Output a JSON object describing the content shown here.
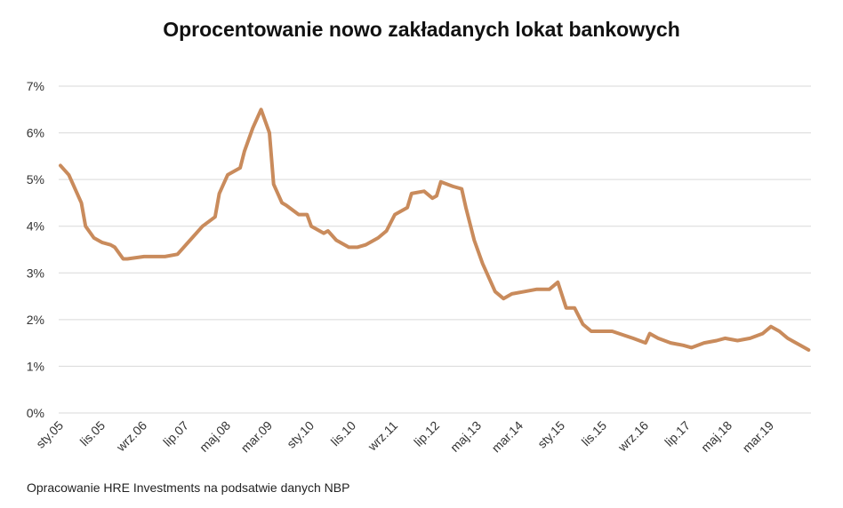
{
  "chart_data": {
    "type": "line",
    "title": "Oprocentowanie nowo zakładanych lokat bankowych",
    "source": "Opracowanie HRE Investments na podsatwie danych NBP",
    "xlabel": "",
    "ylabel": "",
    "ylim": [
      0,
      7
    ],
    "yticks": [
      "0%",
      "1%",
      "2%",
      "3%",
      "4%",
      "5%",
      "6%",
      "7%"
    ],
    "xticks": [
      "sty.05",
      "lis.05",
      "wrz.06",
      "lip.07",
      "maj.08",
      "mar.09",
      "sty.10",
      "lis.10",
      "wrz.11",
      "lip.12",
      "maj.13",
      "mar.14",
      "sty.15",
      "lis.15",
      "wrz.16",
      "lip.17",
      "maj.18",
      "mar.19"
    ],
    "grid": true,
    "line_color": "#c98b5c",
    "series": [
      {
        "name": "Oprocentowanie",
        "x": [
          "2005-01",
          "2005-03",
          "2005-06",
          "2005-07",
          "2005-09",
          "2005-11",
          "2006-01",
          "2006-02",
          "2006-04",
          "2006-05",
          "2006-09",
          "2007-02",
          "2007-05",
          "2007-08",
          "2007-11",
          "2008-02",
          "2008-03",
          "2008-05",
          "2008-08",
          "2008-09",
          "2008-11",
          "2009-01",
          "2009-03",
          "2009-04",
          "2009-06",
          "2009-07",
          "2009-10",
          "2009-12",
          "2010-01",
          "2010-04",
          "2010-05",
          "2010-07",
          "2010-10",
          "2010-12",
          "2011-02",
          "2011-05",
          "2011-07",
          "2011-09",
          "2011-12",
          "2012-01",
          "2012-04",
          "2012-06",
          "2012-07",
          "2012-08",
          "2012-11",
          "2013-01",
          "2013-02",
          "2013-04",
          "2013-06",
          "2013-09",
          "2013-11",
          "2014-01",
          "2014-04",
          "2014-07",
          "2014-10",
          "2014-12",
          "2015-02",
          "2015-04",
          "2015-06",
          "2015-08",
          "2016-01",
          "2016-06",
          "2016-09",
          "2016-10",
          "2016-12",
          "2017-03",
          "2017-06",
          "2017-08",
          "2017-11",
          "2018-02",
          "2018-04",
          "2018-07",
          "2018-10",
          "2019-01",
          "2019-03",
          "2019-05",
          "2019-07",
          "2019-10",
          "2019-12"
        ],
        "values": [
          5.3,
          5.1,
          4.5,
          4.0,
          3.75,
          3.65,
          3.6,
          3.55,
          3.3,
          3.3,
          3.35,
          3.35,
          3.4,
          3.7,
          4.0,
          4.2,
          4.7,
          5.1,
          5.25,
          5.6,
          6.1,
          6.5,
          6.0,
          4.9,
          4.5,
          4.45,
          4.25,
          4.25,
          4.0,
          3.85,
          3.9,
          3.7,
          3.55,
          3.55,
          3.6,
          3.75,
          3.9,
          4.25,
          4.4,
          4.7,
          4.75,
          4.6,
          4.65,
          4.95,
          4.85,
          4.8,
          4.4,
          3.7,
          3.2,
          2.6,
          2.45,
          2.55,
          2.6,
          2.65,
          2.65,
          2.8,
          2.25,
          2.25,
          1.9,
          1.75,
          1.75,
          1.6,
          1.5,
          1.7,
          1.6,
          1.5,
          1.45,
          1.4,
          1.5,
          1.55,
          1.6,
          1.55,
          1.6,
          1.7,
          1.85,
          1.75,
          1.6,
          1.45,
          1.35
        ]
      }
    ]
  }
}
